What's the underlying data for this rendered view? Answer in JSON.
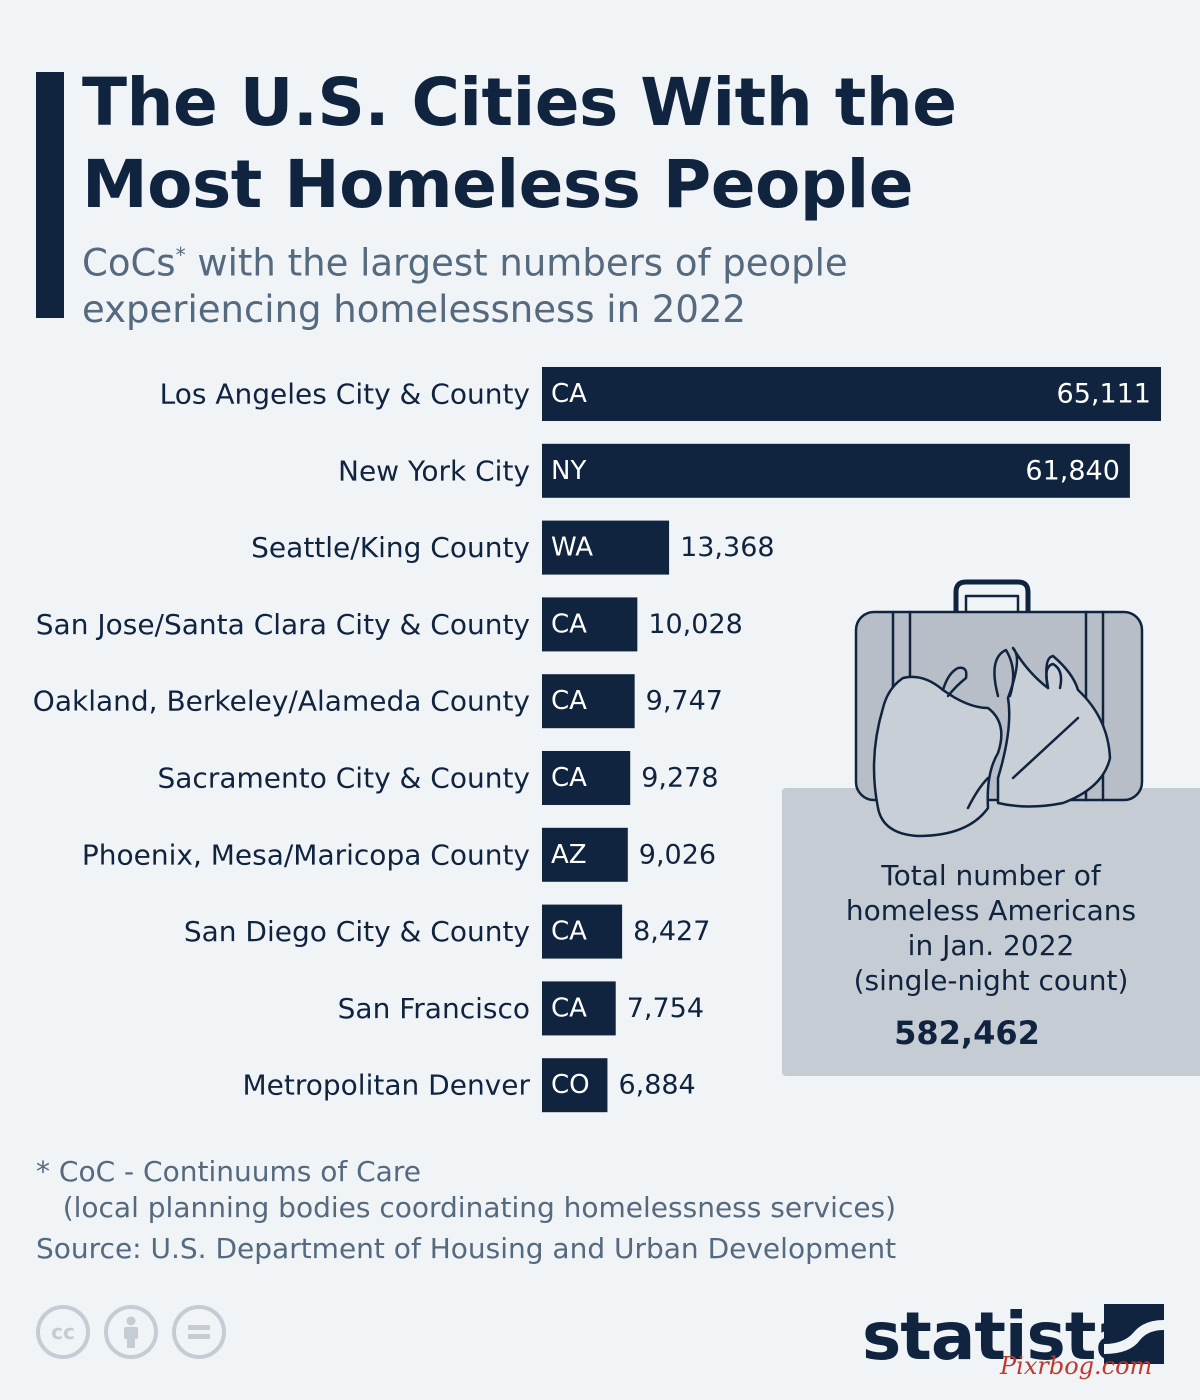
{
  "header": {
    "title_line1": "The U.S. Cities With the",
    "title_line2": "Most Homeless People",
    "subtitle_part1": "CoCs",
    "subtitle_sup": "*",
    "subtitle_part2": " with the largest numbers of people",
    "subtitle_line2": "experiencing homelessness in 2022"
  },
  "chart_data": {
    "type": "bar",
    "orientation": "horizontal",
    "categories": [
      "Los Angeles City & County",
      "New York City",
      "Seattle/King County",
      "San Jose/Santa Clara City & County",
      "Oakland, Berkeley/Alameda County",
      "Sacramento City & County",
      "Phoenix, Mesa/Maricopa County",
      "San Diego City & County",
      "San Francisco",
      "Metropolitan Denver"
    ],
    "states": [
      "CA",
      "NY",
      "WA",
      "CA",
      "CA",
      "CA",
      "AZ",
      "CA",
      "CA",
      "CO"
    ],
    "values": [
      65111,
      61840,
      13368,
      10028,
      9747,
      9278,
      9026,
      8427,
      7754,
      6884
    ],
    "value_labels": [
      "65,111",
      "61,840",
      "13,368",
      "10,028",
      "9,747",
      "9,278",
      "9,026",
      "8,427",
      "7,754",
      "6,884"
    ],
    "xlim": [
      0,
      65111
    ],
    "bar_color": "#10243f",
    "grid": false
  },
  "infobox": {
    "line1": "Total number of",
    "line2": "homeless Americans",
    "line3": "in Jan. 2022",
    "line4": "(single-night count)",
    "value": "582,462",
    "icon": "suitcase-with-bags-icon"
  },
  "footer": {
    "footnote": "* CoC - Continuums of Care\n   (local planning bodies coordinating homelessness services)",
    "source": "Source: U.S. Department of Housing and Urban Development",
    "license_icons": [
      "cc-icon",
      "attribution-icon",
      "no-derivatives-icon"
    ],
    "license_cc_text": "cc",
    "brand": "statista",
    "watermark": "Pixrbog.com"
  },
  "colors": {
    "background": "#f1f4f7",
    "primary": "#10243f",
    "muted_text": "#55697f",
    "infobox_bg": "#c6ccd3"
  }
}
